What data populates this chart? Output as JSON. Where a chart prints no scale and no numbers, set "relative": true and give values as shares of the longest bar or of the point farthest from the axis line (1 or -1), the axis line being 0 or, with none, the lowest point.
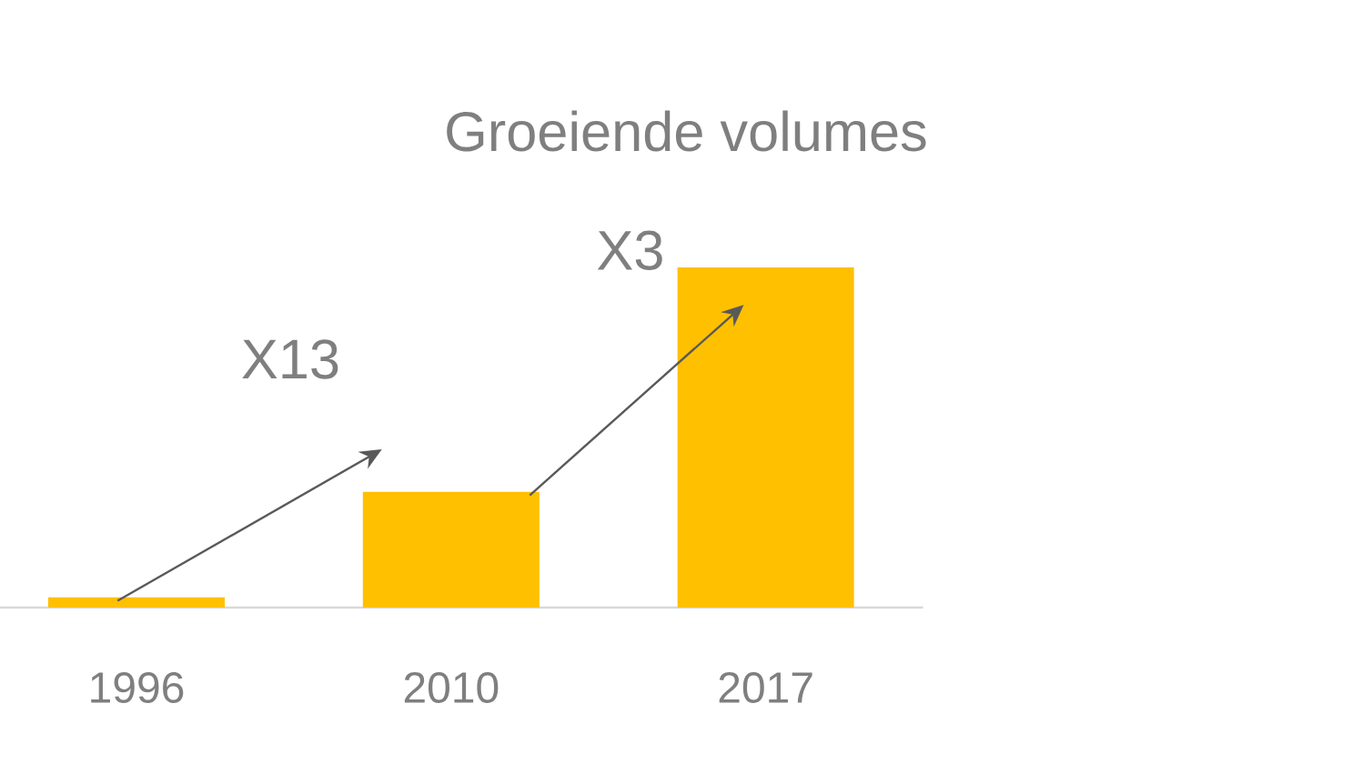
{
  "chart_data": {
    "type": "bar",
    "title": "Groeiende volumes",
    "categories": [
      "1996",
      "2010",
      "2017"
    ],
    "values": [
      0.03,
      0.34,
      1
    ],
    "color": "#ffc000",
    "relative": true,
    "annotations": [
      "X13",
      "X3"
    ]
  }
}
